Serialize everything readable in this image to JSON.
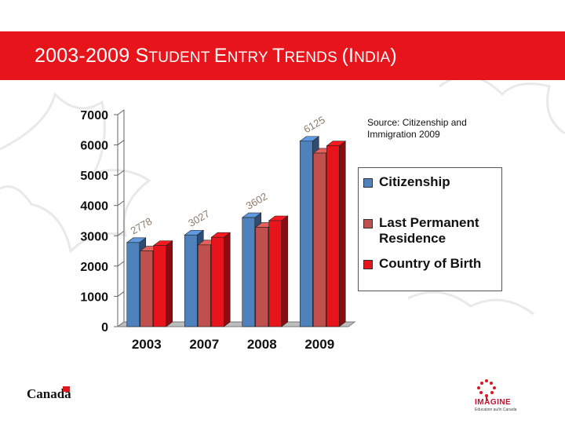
{
  "slide": {
    "title_parts": [
      {
        "text": "2003-2009 S",
        "small": false
      },
      {
        "text": "TUDENT ",
        "small": true
      },
      {
        "text": "E",
        "small": false
      },
      {
        "text": "NTRY ",
        "small": true
      },
      {
        "text": "T",
        "small": false
      },
      {
        "text": "RENDS ",
        "small": true
      },
      {
        "text": "(I",
        "small": false
      },
      {
        "text": "NDIA",
        "small": true
      },
      {
        "text": ")",
        "small": false
      }
    ],
    "source_note": "Source:  Citizenship and Immigration 2009",
    "footer_left": "Canada",
    "footer_right_logo": "IMAGINE",
    "footer_right_sub": "Education au/in Canada"
  },
  "colors": {
    "title_bar": "#e8141b",
    "citizenship": "#4f81bd",
    "last_permanent_residence": "#c0504d",
    "country_of_birth": "#e8141b"
  },
  "chart_data": {
    "type": "bar",
    "categories": [
      "2003",
      "2007",
      "2008",
      "2009"
    ],
    "series": [
      {
        "name": "Citizenship",
        "values": [
          2778,
          3027,
          3602,
          6125
        ],
        "color": "#4f81bd"
      },
      {
        "name": "Last Permanent Residence",
        "values": [
          2500,
          2700,
          3280,
          5730
        ],
        "color": "#c0504d"
      },
      {
        "name": "Country of Birth",
        "values": [
          2680,
          2950,
          3500,
          5970
        ],
        "color": "#e8141b"
      }
    ],
    "data_labels": [
      "2778",
      "3027",
      "3602",
      "6125"
    ],
    "yticks": [
      "0",
      "1000",
      "2000",
      "3000",
      "4000",
      "5000",
      "6000",
      "7000"
    ],
    "ylim": [
      0,
      7000
    ],
    "xlabel": "",
    "ylabel": "",
    "legend_position": "right",
    "grid": false,
    "style": "3d-clustered-column"
  }
}
